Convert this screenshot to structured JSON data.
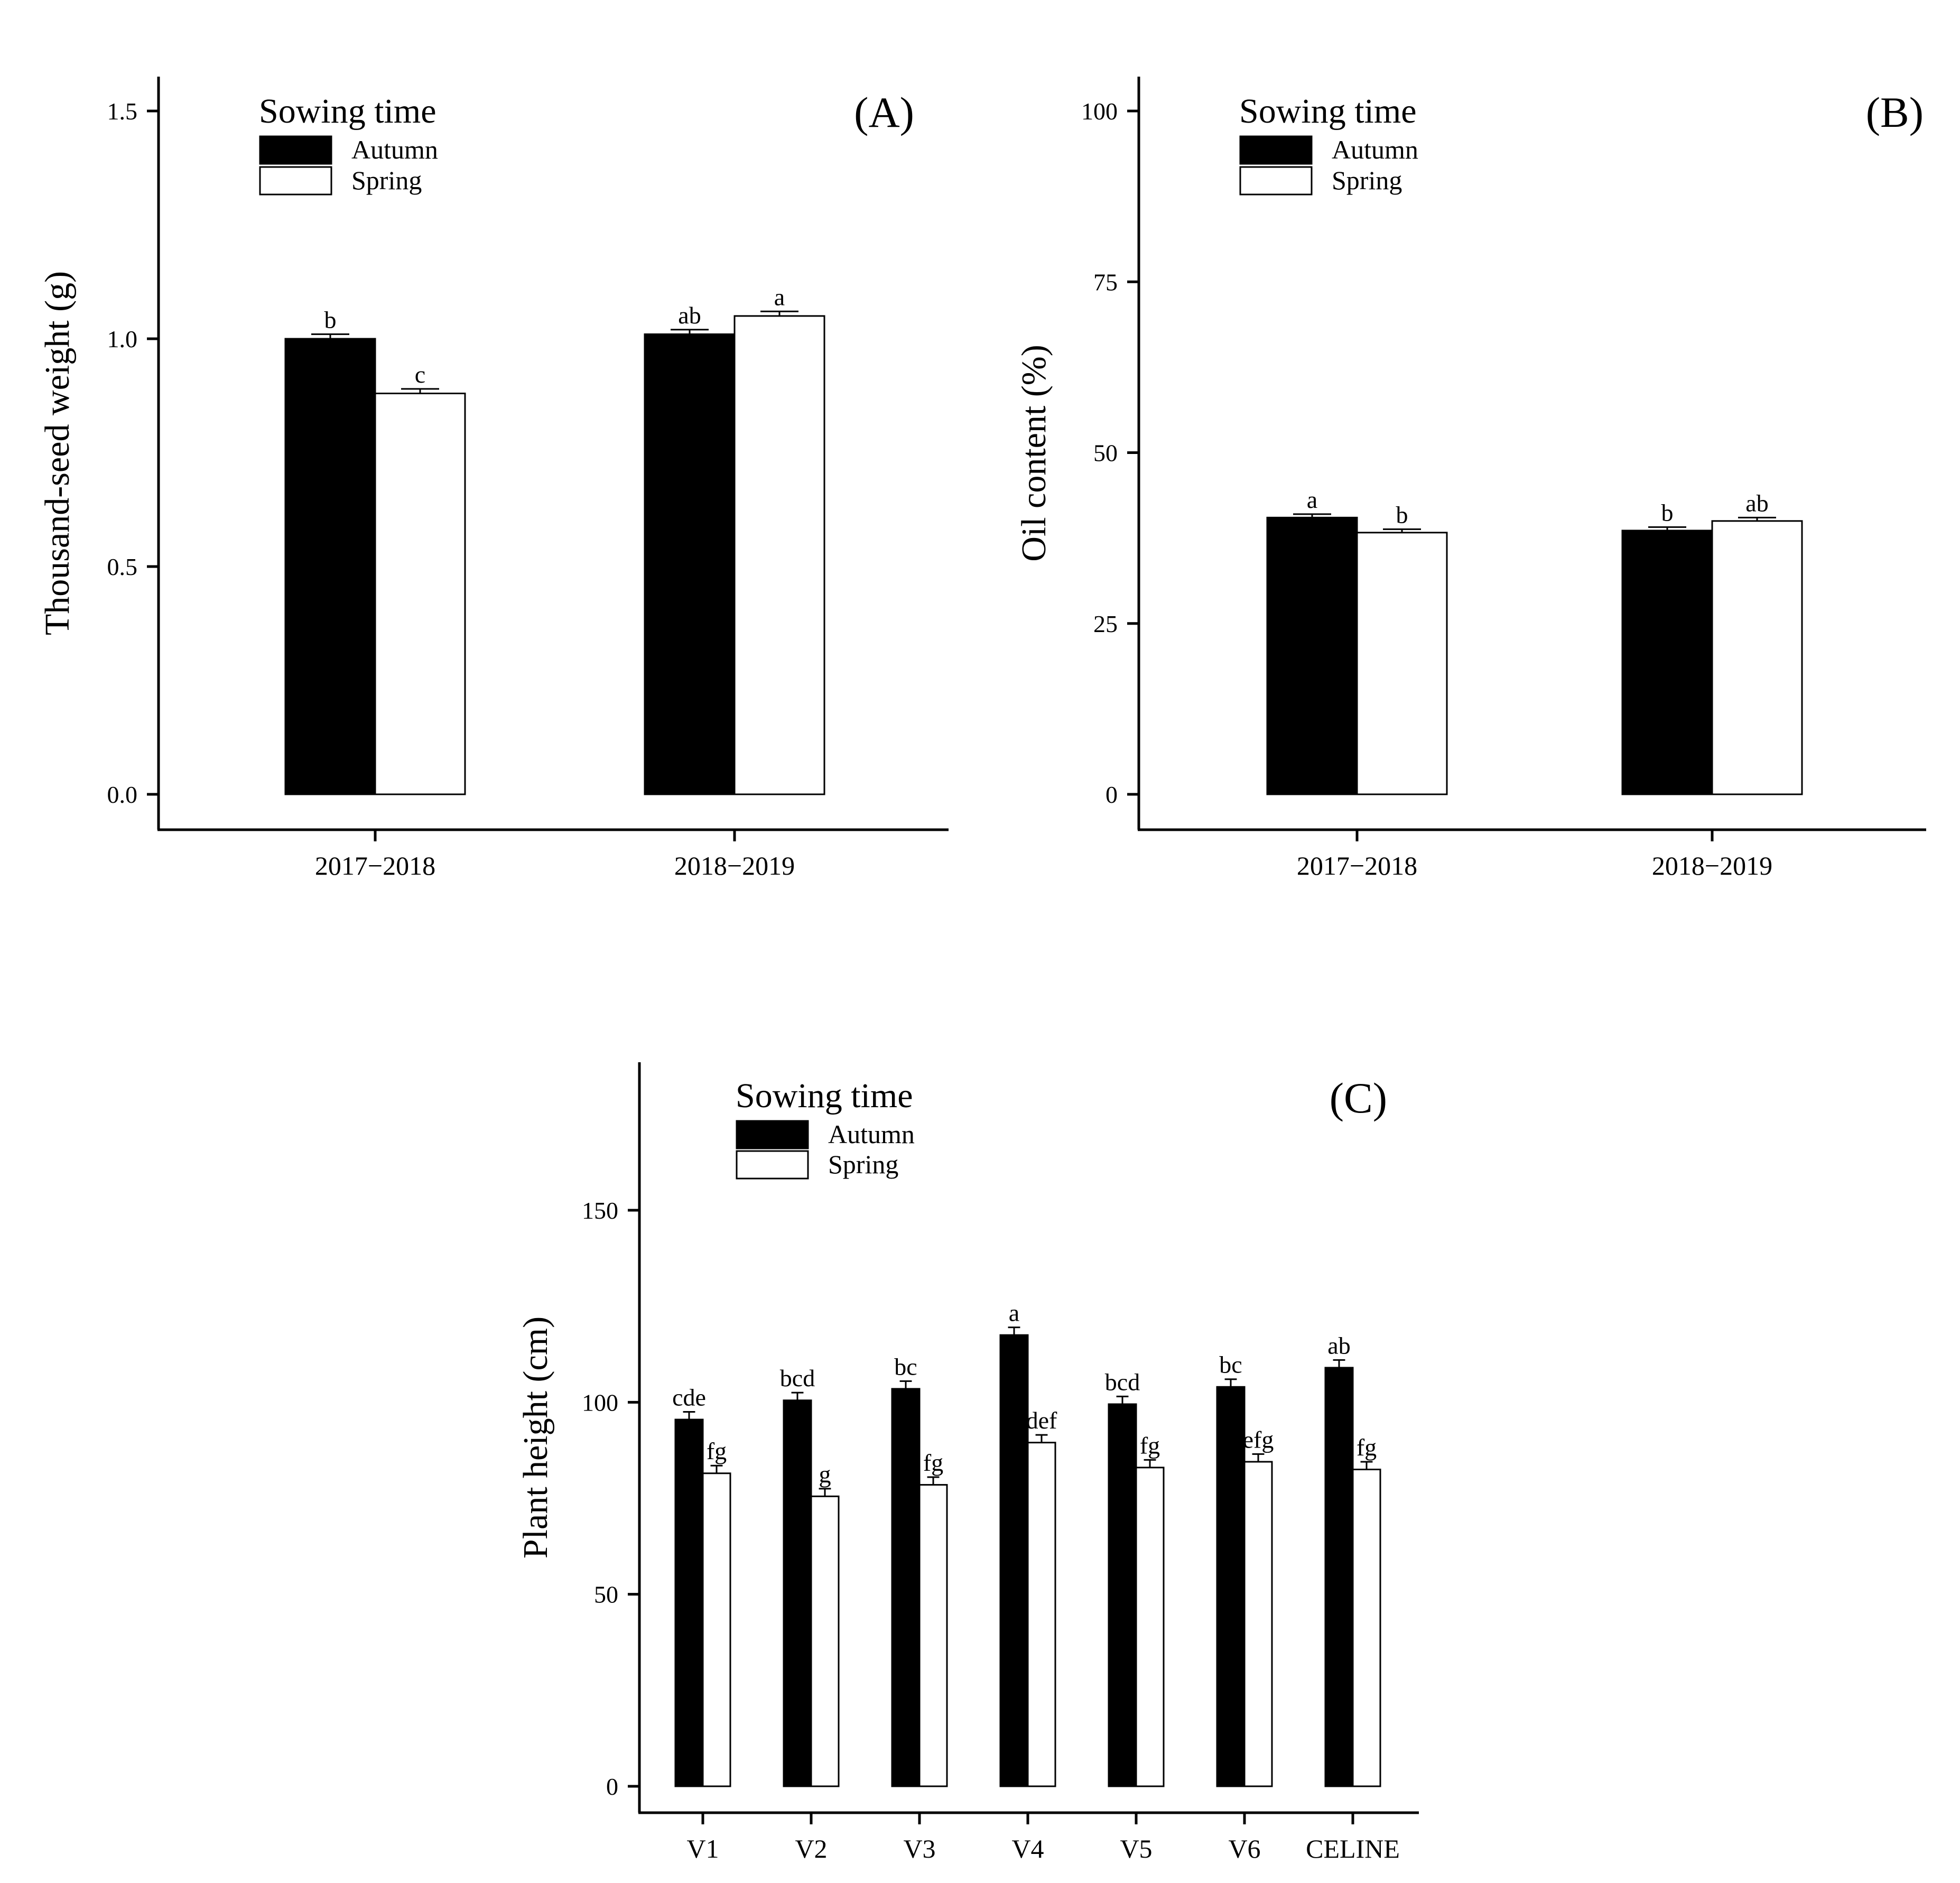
{
  "chart_data": [
    {
      "panel": "A",
      "type": "bar",
      "tag": "(A)",
      "ylabel": "Thousand-seed weight (g)",
      "xlabel": "",
      "ylim": [
        0,
        1.5
      ],
      "yticks": [
        0.0,
        0.5,
        1.0,
        1.5
      ],
      "ytick_labels": [
        "0.0",
        "0.5",
        "1.0",
        "1.5"
      ],
      "categories": [
        "2017−2018",
        "2018−2019"
      ],
      "legend": {
        "title": "Sowing time",
        "entries": [
          "Autumn",
          "Spring"
        ],
        "position": "top-left"
      },
      "series": [
        {
          "name": "Autumn",
          "color": "#000000",
          "values": [
            1.0,
            1.01
          ],
          "errors": [
            0.01,
            0.01
          ],
          "letters": [
            "b",
            "ab"
          ]
        },
        {
          "name": "Spring",
          "color": "#ffffff",
          "values": [
            0.88,
            1.05
          ],
          "errors": [
            0.01,
            0.01
          ],
          "letters": [
            "c",
            "a"
          ]
        }
      ]
    },
    {
      "panel": "B",
      "type": "bar",
      "tag": "(B)",
      "ylabel": "Oil content (%)",
      "xlabel": "",
      "ylim": [
        0,
        100
      ],
      "yticks": [
        0,
        25,
        50,
        75,
        100
      ],
      "ytick_labels": [
        "0",
        "25",
        "50",
        "75",
        "100"
      ],
      "categories": [
        "2017−2018",
        "2018−2019"
      ],
      "legend": {
        "title": "Sowing time",
        "entries": [
          "Autumn",
          "Spring"
        ],
        "position": "top-left"
      },
      "series": [
        {
          "name": "Autumn",
          "color": "#000000",
          "values": [
            40.5,
            38.6
          ],
          "errors": [
            0.5,
            0.5
          ],
          "letters": [
            "a",
            "b"
          ]
        },
        {
          "name": "Spring",
          "color": "#ffffff",
          "values": [
            38.3,
            40.0
          ],
          "errors": [
            0.5,
            0.5
          ],
          "letters": [
            "b",
            "ab"
          ]
        }
      ]
    },
    {
      "panel": "C",
      "type": "bar",
      "tag": "(C)",
      "ylabel": "Plant height (cm)",
      "xlabel": "",
      "ylim": [
        0,
        190
      ],
      "yticks": [
        0,
        50,
        100,
        150
      ],
      "ytick_labels": [
        "0",
        "50",
        "100",
        "150"
      ],
      "categories": [
        "V1",
        "V2",
        "V3",
        "V4",
        "V5",
        "V6",
        "CELINE"
      ],
      "legend": {
        "title": "Sowing time",
        "entries": [
          "Autumn",
          "Spring"
        ],
        "position": "top-left"
      },
      "series": [
        {
          "name": "Autumn",
          "color": "#000000",
          "values": [
            95.5,
            100.5,
            103.5,
            117.5,
            99.5,
            104.0,
            109.0
          ],
          "errors": [
            2,
            2,
            2,
            2,
            2,
            2,
            2
          ],
          "letters": [
            "cde",
            "bcd",
            "bc",
            "a",
            "bcd",
            "bc",
            "ab"
          ]
        },
        {
          "name": "Spring",
          "color": "#ffffff",
          "values": [
            81.5,
            75.5,
            78.5,
            89.5,
            83.0,
            84.5,
            82.5
          ],
          "errors": [
            2,
            2,
            2,
            2,
            2,
            2,
            2
          ],
          "letters": [
            "fg",
            "g",
            "fg",
            "def",
            "fg",
            "efg",
            "fg"
          ]
        }
      ]
    }
  ]
}
